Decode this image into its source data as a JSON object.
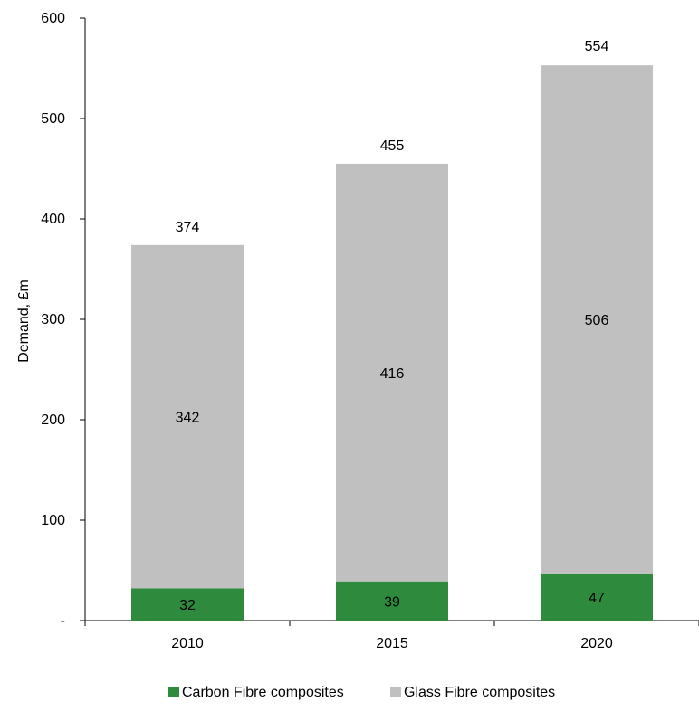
{
  "chart_data": {
    "type": "bar",
    "stacked": true,
    "categories": [
      "2010",
      "2015",
      "2020"
    ],
    "series": [
      {
        "name": "Carbon Fibre composites",
        "values": [
          32,
          39,
          47
        ],
        "color": "#2e8b3e"
      },
      {
        "name": "Glass Fibre composites",
        "values": [
          342,
          416,
          506
        ],
        "color": "#c0c0c0"
      }
    ],
    "totals": [
      374,
      455,
      554
    ],
    "ylabel": "Demand, £m",
    "xlabel": "",
    "ylim": [
      0,
      600
    ],
    "yticks": [
      0,
      100,
      200,
      300,
      400,
      500,
      600
    ],
    "ytick_labels": [
      "-",
      "100",
      "200",
      "300",
      "400",
      "500",
      "600"
    ],
    "grid": false,
    "legend_position": "bottom"
  }
}
